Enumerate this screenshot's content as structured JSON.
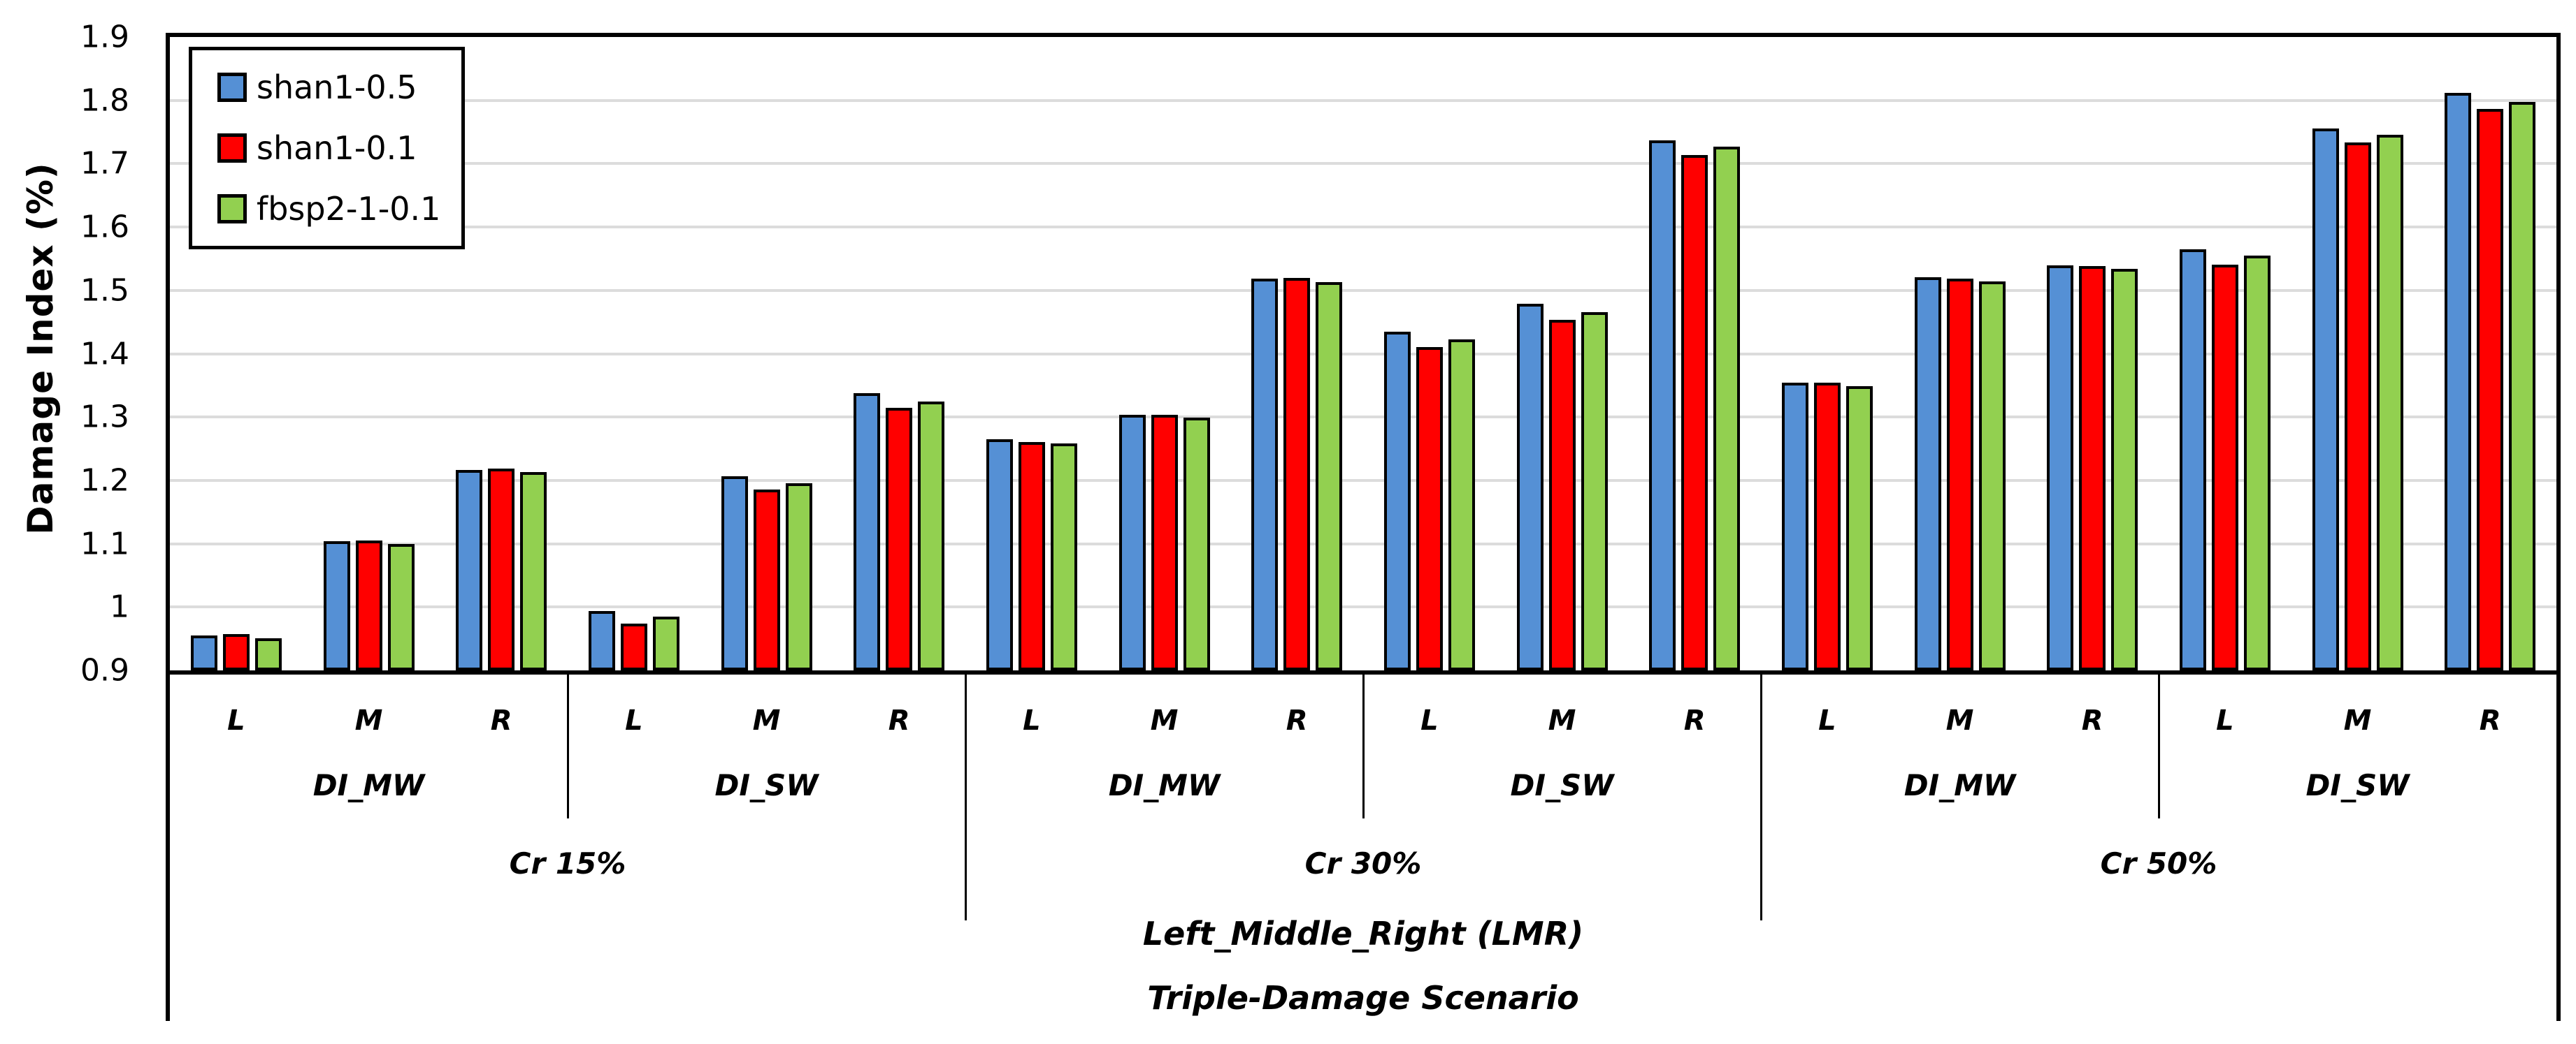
{
  "background": "#FFFFFF",
  "chart_data": {
    "type": "bar",
    "title": "",
    "ylabel": "Damage Index (%)",
    "xlabel_level1": "Left_Middle_Right (LMR)",
    "xlabel_level2": "Triple-Damage Scenario",
    "ylim": [
      0.9,
      1.9
    ],
    "ytick_step": 0.1,
    "yticks": [
      "0.9",
      "1",
      "1.1",
      "1.2",
      "1.3",
      "1.4",
      "1.5",
      "1.6",
      "1.7",
      "1.8",
      "1.9"
    ],
    "grid": "horizontal",
    "gridline_color": "#DCDCDC",
    "legend_position": "top-left-inside",
    "series": [
      {
        "name": "shan1-0.5",
        "color": "#5590D5"
      },
      {
        "name": "shan1-0.1",
        "color": "#FF0000"
      },
      {
        "name": "fbsp2-1-0.1",
        "color": "#92D050"
      }
    ],
    "category_levels": {
      "positions": [
        "L",
        "M",
        "R"
      ],
      "damage_indices": [
        "DI_MW",
        "DI_SW"
      ],
      "crack_ratios": [
        "Cr 15%",
        "Cr 30%",
        "Cr 50%"
      ]
    },
    "groups": [
      {
        "cr": "Cr 15%",
        "di": "DI_MW",
        "pos": "L",
        "values": [
          0.955,
          0.957,
          0.951
        ]
      },
      {
        "cr": "Cr 15%",
        "di": "DI_MW",
        "pos": "M",
        "values": [
          1.104,
          1.105,
          1.1
        ]
      },
      {
        "cr": "Cr 15%",
        "di": "DI_MW",
        "pos": "R",
        "values": [
          1.216,
          1.219,
          1.213
        ]
      },
      {
        "cr": "Cr 15%",
        "di": "DI_SW",
        "pos": "L",
        "values": [
          0.994,
          0.974,
          0.985
        ]
      },
      {
        "cr": "Cr 15%",
        "di": "DI_SW",
        "pos": "M",
        "values": [
          1.207,
          1.186,
          1.195
        ]
      },
      {
        "cr": "Cr 15%",
        "di": "DI_SW",
        "pos": "R",
        "values": [
          1.338,
          1.315,
          1.324
        ]
      },
      {
        "cr": "Cr 30%",
        "di": "DI_MW",
        "pos": "L",
        "values": [
          1.265,
          1.261,
          1.258
        ]
      },
      {
        "cr": "Cr 30%",
        "di": "DI_MW",
        "pos": "M",
        "values": [
          1.303,
          1.304,
          1.299
        ]
      },
      {
        "cr": "Cr 30%",
        "di": "DI_MW",
        "pos": "R",
        "values": [
          1.518,
          1.52,
          1.513
        ]
      },
      {
        "cr": "Cr 30%",
        "di": "DI_SW",
        "pos": "L",
        "values": [
          1.435,
          1.411,
          1.423
        ]
      },
      {
        "cr": "Cr 30%",
        "di": "DI_SW",
        "pos": "M",
        "values": [
          1.479,
          1.453,
          1.466
        ]
      },
      {
        "cr": "Cr 30%",
        "di": "DI_SW",
        "pos": "R",
        "values": [
          1.737,
          1.714,
          1.727
        ]
      },
      {
        "cr": "Cr 50%",
        "di": "DI_MW",
        "pos": "L",
        "values": [
          1.354,
          1.354,
          1.349
        ]
      },
      {
        "cr": "Cr 50%",
        "di": "DI_MW",
        "pos": "M",
        "values": [
          1.521,
          1.518,
          1.514
        ]
      },
      {
        "cr": "Cr 50%",
        "di": "DI_MW",
        "pos": "R",
        "values": [
          1.54,
          1.538,
          1.534
        ]
      },
      {
        "cr": "Cr 50%",
        "di": "DI_SW",
        "pos": "L",
        "values": [
          1.565,
          1.541,
          1.555
        ]
      },
      {
        "cr": "Cr 50%",
        "di": "DI_SW",
        "pos": "M",
        "values": [
          1.756,
          1.733,
          1.746
        ]
      },
      {
        "cr": "Cr 50%",
        "di": "DI_SW",
        "pos": "R",
        "values": [
          1.812,
          1.786,
          1.797
        ]
      }
    ]
  }
}
